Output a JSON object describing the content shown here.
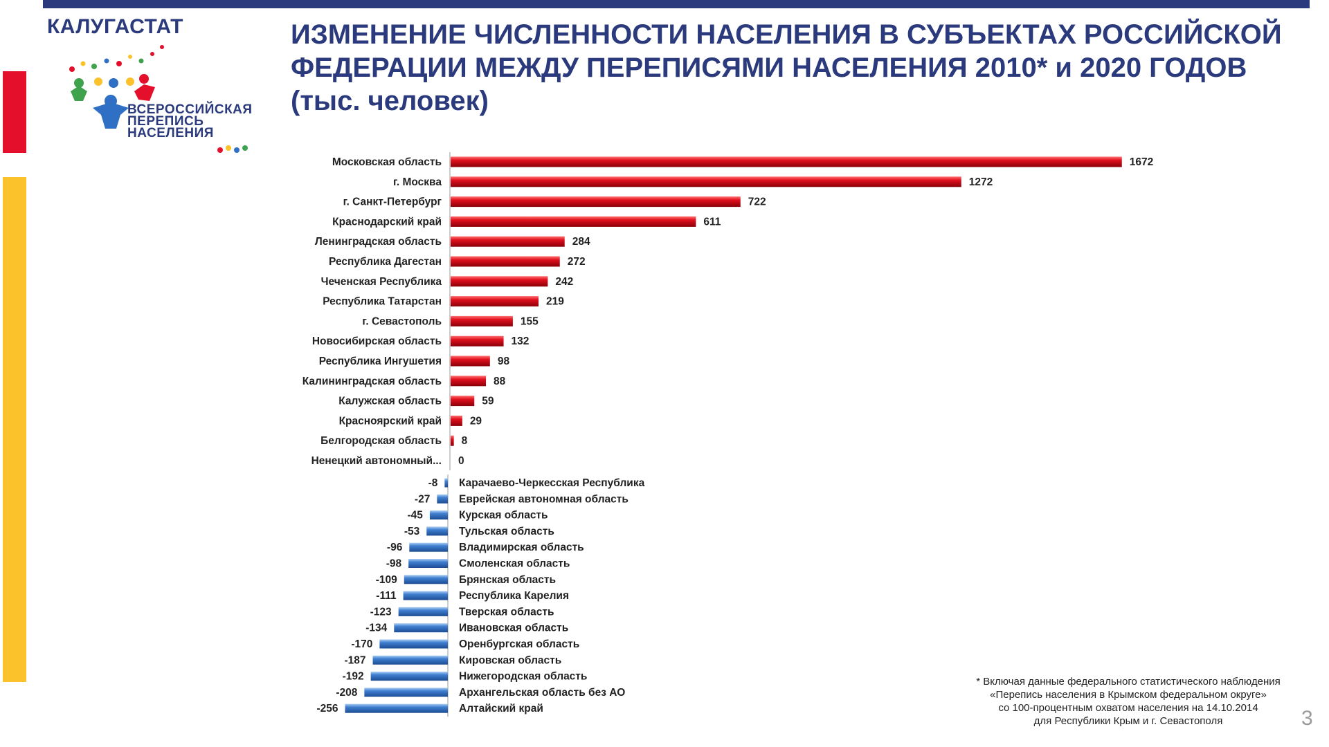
{
  "header": {
    "brand": "КАЛУГАСТАТ",
    "logo_lines": [
      "ВСЕРОССИЙСКАЯ",
      "ПЕРЕПИСЬ",
      "НАСЕЛЕНИЯ"
    ],
    "title_lines": [
      "ИЗМЕНЕНИЕ ЧИСЛЕННОСТИ НАСЕЛЕНИЯ В СУБЪЕКТАХ РОССИЙСКОЙ",
      "ФЕДЕРАЦИИ МЕЖДУ ПЕРЕПИСЯМИ НАСЕЛЕНИЯ 2010* и 2020 ГОДОВ",
      "(тыс. человек)"
    ]
  },
  "chart_data": {
    "type": "bar",
    "orientation": "horizontal",
    "title": "ИЗМЕНЕНИЕ ЧИСЛЕННОСТИ НАСЕЛЕНИЯ В СУБЪЕКТАХ РОССИЙСКОЙ ФЕДЕРАЦИИ МЕЖДУ ПЕРЕПИСЯМИ НАСЕЛЕНИЯ 2010* и 2020 ГОДОВ (тыс. человек)",
    "positive": {
      "color": "#e0101e",
      "categories": [
        "Московская область",
        "г. Москва",
        "г. Санкт-Петербург",
        "Краснодарский край",
        "Ленинградская область",
        "Республика Дагестан",
        "Чеченская Республика",
        "Республика Татарстан",
        "г. Севастополь",
        "Новосибирская область",
        "Республика Ингушетия",
        "Калининградская область",
        "Калужская область",
        "Красноярский край",
        "Белгородская область",
        "Ненецкий автономный..."
      ],
      "values": [
        1672,
        1272,
        722,
        611,
        284,
        272,
        242,
        219,
        155,
        132,
        98,
        88,
        59,
        29,
        8,
        0
      ]
    },
    "negative": {
      "color": "#3f7fd0",
      "categories": [
        "Карачаево-Черкесская Республика",
        "Еврейская автономная область",
        "Курская область",
        "Тульская область",
        "Владимирская область",
        "Смоленская область",
        "Брянская область",
        "Республика Карелия",
        "Тверская область",
        "Ивановская область",
        "Оренбургская область",
        "Кировская область",
        "Нижегородская область",
        "Архангельская область без АО",
        "Алтайский край"
      ],
      "values": [
        -8,
        -27,
        -45,
        -53,
        -96,
        -98,
        -109,
        -111,
        -123,
        -134,
        -170,
        -187,
        -192,
        -208,
        -256
      ]
    }
  },
  "footnote": [
    "* Включая данные федерального статистического наблюдения",
    "«Перепись населения в Крымском федеральном округе»",
    "со 100-процентным охватом населения на 14.10.2014",
    "для Республики Крым и г. Севастополя"
  ],
  "page_number": "3",
  "colors": {
    "accent": "#2b3a7c",
    "red_stripe": "#e30f2b",
    "yellow_stripe": "#fcc22c"
  }
}
